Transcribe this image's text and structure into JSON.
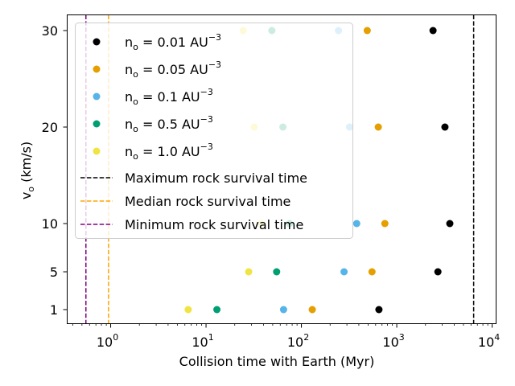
{
  "chart_data": {
    "type": "scatter",
    "title": "",
    "xlabel": "Collision time with Earth (Myr)",
    "ylabel": "v_o (km/s)",
    "x_scale": "log",
    "xlim": [
      0.35,
      11000
    ],
    "x_ticks": [
      {
        "value": 1,
        "base": "10",
        "exp": "0"
      },
      {
        "value": 10,
        "base": "10",
        "exp": "1"
      },
      {
        "value": 100,
        "base": "10",
        "exp": "2"
      },
      {
        "value": 1000,
        "base": "10",
        "exp": "3"
      },
      {
        "value": 10000,
        "base": "10",
        "exp": "4"
      }
    ],
    "y_ticks": [
      "1",
      "5",
      "10",
      "20",
      "30"
    ],
    "grid": false,
    "legend_position": "upper-left",
    "series": [
      {
        "name": "n_o = 0.01 AU^-3",
        "label_base": "n",
        "label_sub": "o",
        "label_mid": " = 0.01 AU",
        "label_sup": "−3",
        "color": "#000000",
        "points": [
          {
            "x": 650,
            "y": "1"
          },
          {
            "x": 2700,
            "y": "5"
          },
          {
            "x": 3600,
            "y": "10"
          },
          {
            "x": 3200,
            "y": "20"
          },
          {
            "x": 2400,
            "y": "30"
          }
        ]
      },
      {
        "name": "n_o = 0.05 AU^-3",
        "label_base": "n",
        "label_sub": "o",
        "label_mid": " = 0.05 AU",
        "label_sup": "−3",
        "color": "#E69F00",
        "points": [
          {
            "x": 130,
            "y": "1"
          },
          {
            "x": 550,
            "y": "5"
          },
          {
            "x": 750,
            "y": "10"
          },
          {
            "x": 640,
            "y": "20"
          },
          {
            "x": 490,
            "y": "30"
          }
        ]
      },
      {
        "name": "n_o = 0.1 AU^-3",
        "label_base": "n",
        "label_sub": "o",
        "label_mid": " = 0.1 AU",
        "label_sup": "−3",
        "color": "#56B4E9",
        "points": [
          {
            "x": 65,
            "y": "1"
          },
          {
            "x": 280,
            "y": "5"
          },
          {
            "x": 380,
            "y": "10"
          },
          {
            "x": 320,
            "y": "20"
          },
          {
            "x": 245,
            "y": "30"
          }
        ]
      },
      {
        "name": "n_o = 0.5 AU^-3",
        "label_base": "n",
        "label_sub": "o",
        "label_mid": " = 0.5 AU",
        "label_sup": "−3",
        "color": "#009E73",
        "points": [
          {
            "x": 13,
            "y": "1"
          },
          {
            "x": 55,
            "y": "5"
          },
          {
            "x": 75,
            "y": "10"
          },
          {
            "x": 64,
            "y": "20"
          },
          {
            "x": 49,
            "y": "30"
          }
        ]
      },
      {
        "name": "n_o = 1.0 AU^-3",
        "label_base": "n",
        "label_sub": "o",
        "label_mid": " = 1.0 AU",
        "label_sup": "−3",
        "color": "#F0E442",
        "points": [
          {
            "x": 6.5,
            "y": "1"
          },
          {
            "x": 28,
            "y": "5"
          },
          {
            "x": 38,
            "y": "10"
          },
          {
            "x": 32,
            "y": "20"
          },
          {
            "x": 24.5,
            "y": "30"
          }
        ]
      }
    ],
    "reference_lines": [
      {
        "name": "Maximum rock survival time",
        "x": 6400,
        "color": "#000000"
      },
      {
        "name": "Median rock survival time",
        "x": 0.95,
        "color": "#FFA500"
      },
      {
        "name": "Minimum rock survival time",
        "x": 0.55,
        "color": "#800080"
      }
    ]
  }
}
